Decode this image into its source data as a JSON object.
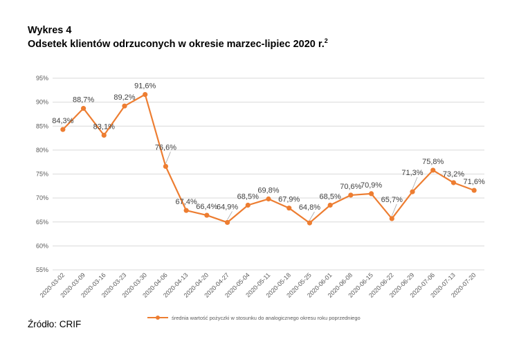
{
  "heading": {
    "label": "Wykres 4",
    "title": "Odsetek klientów odrzuconych w okresie marzec-lipiec 2020 r.",
    "footnote_mark": "2"
  },
  "source": "Źródło: CRIF",
  "colors": {
    "series": "#ED7D31",
    "grid": "#D9D9D9",
    "tick_text": "#595959",
    "leader": "#A6A6A6"
  },
  "chart_data": {
    "type": "line",
    "x": [
      "2020-03-02",
      "2020-03-09",
      "2020-03-16",
      "2020-03-23",
      "2020-03-30",
      "2020-04-06",
      "2020-04-13",
      "2020-04-20",
      "2020-04-27",
      "2020-05-04",
      "2020-05-11",
      "2020-05-18",
      "2020-05-25",
      "2020-06-01",
      "2020-06-08",
      "2020-06-15",
      "2020-06-22",
      "2020-06-29",
      "2020-07-06",
      "2020-07-13",
      "2020-07-20"
    ],
    "series": [
      {
        "name": "średnia wartość pożyczki w stosunku do analogicznego okresu roku poprzedniego",
        "values": [
          84.3,
          88.7,
          83.1,
          89.2,
          91.6,
          76.6,
          67.4,
          66.4,
          64.9,
          68.5,
          69.8,
          67.9,
          64.8,
          68.5,
          70.6,
          70.9,
          65.7,
          71.3,
          75.8,
          73.2,
          71.6
        ],
        "labels": [
          "84,3%",
          "88,7%",
          "83,1%",
          "89,2%",
          "91,6%",
          "76,6%",
          "67,4%",
          "66,4%",
          "64,9%",
          "68,5%",
          "69,8%",
          "67,9%",
          "64,8%",
          "68,5%",
          "70,6%",
          "70,9%",
          "65,7%",
          "71,3%",
          "75,8%",
          "73,2%",
          "71,6%"
        ]
      }
    ],
    "yticks": [
      55,
      60,
      65,
      70,
      75,
      80,
      85,
      90,
      95
    ],
    "ytick_labels": [
      "55%",
      "60%",
      "65%",
      "70%",
      "75%",
      "80%",
      "85%",
      "90%",
      "95%"
    ],
    "ylim": [
      55,
      95
    ],
    "grid": true,
    "legend": "bottom"
  }
}
